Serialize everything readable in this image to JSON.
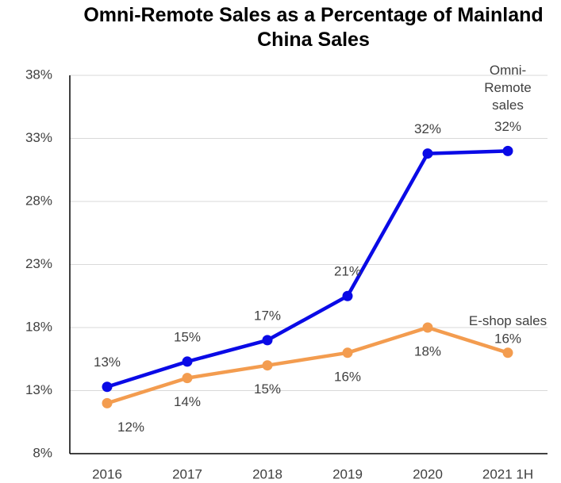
{
  "chart_data": {
    "type": "line",
    "title": "Omni-Remote Sales as a Percentage of Mainland China Sales",
    "categories": [
      "2016",
      "2017",
      "2018",
      "2019",
      "2020",
      "2021 1H"
    ],
    "series": [
      {
        "name": "Omni-Remote sales",
        "color": "#0a0ae6",
        "values": [
          13.3,
          15.3,
          17.0,
          20.5,
          31.8,
          32.0
        ],
        "value_labels": [
          "13%",
          "15%",
          "17%",
          "21%",
          "32%",
          "32%"
        ]
      },
      {
        "name": "E-shop sales",
        "color": "#f39c4f",
        "values": [
          12.0,
          14.0,
          15.0,
          16.0,
          18.0,
          16.0
        ],
        "value_labels": [
          "12%",
          "14%",
          "15%",
          "16%",
          "18%",
          "16%"
        ]
      }
    ],
    "ylim": [
      8,
      38
    ],
    "yticks": [
      {
        "value": 8,
        "label": "8%"
      },
      {
        "value": 13,
        "label": "13%"
      },
      {
        "value": 18,
        "label": "18%"
      },
      {
        "value": 23,
        "label": "23%"
      },
      {
        "value": 28,
        "label": "28%"
      },
      {
        "value": 33,
        "label": "33%"
      },
      {
        "value": 38,
        "label": "38%"
      }
    ],
    "grid": true
  }
}
